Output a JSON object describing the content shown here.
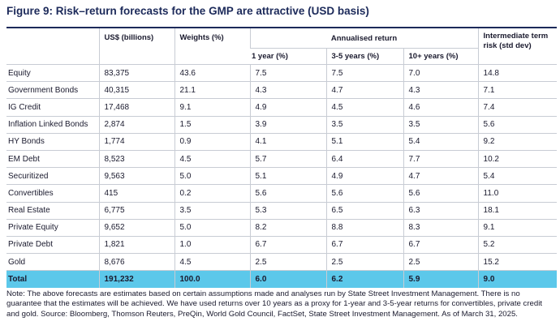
{
  "title": "Figure 9: Risk–return forecasts for the GMP are attractive (USD basis)",
  "table": {
    "columns": [
      "US$ (billions)",
      "Weights (%)",
      "Annualised return",
      "Intermediate term risk (std dev)"
    ],
    "subcolumns": [
      "1 year (%)",
      "3-5 years (%)",
      "10+ years (%)"
    ],
    "rows": [
      [
        "Equity",
        "83,375",
        "43.6",
        "7.5",
        "7.5",
        "7.0",
        "14.8"
      ],
      [
        "Government Bonds",
        "40,315",
        "21.1",
        "4.3",
        "4.7",
        "4.3",
        "7.1"
      ],
      [
        "IG Credit",
        "17,468",
        "9.1",
        "4.9",
        "4.5",
        "4.6",
        "7.4"
      ],
      [
        "Inflation Linked Bonds",
        "2,874",
        "1.5",
        "3.9",
        "3.5",
        "3.5",
        "5.6"
      ],
      [
        "HY Bonds",
        "1,774",
        "0.9",
        "4.1",
        "5.1",
        "5.4",
        "9.2"
      ],
      [
        "EM Debt",
        "8,523",
        "4.5",
        "5.7",
        "6.4",
        "7.7",
        "10.2"
      ],
      [
        "Securitized",
        "9,563",
        "5.0",
        "5.1",
        "4.9",
        "4.7",
        "5.4"
      ],
      [
        "Convertibles",
        "415",
        "0.2",
        "5.6",
        "5.6",
        "5.6",
        "11.0"
      ],
      [
        "Real Estate",
        "6,775",
        "3.5",
        "5.3",
        "6.5",
        "6.3",
        "18.1"
      ],
      [
        "Private Equity",
        "9,652",
        "5.0",
        "8.2",
        "8.8",
        "8.3",
        "9.1"
      ],
      [
        "Private Debt",
        "1,821",
        "1.0",
        "6.7",
        "6.7",
        "6.7",
        "5.2"
      ],
      [
        "Gold",
        "8,676",
        "4.5",
        "2.5",
        "2.5",
        "2.5",
        "15.2"
      ]
    ],
    "total": [
      "Total",
      "191,232",
      "100.0",
      "6.0",
      "6.2",
      "5.9",
      "9.0"
    ]
  },
  "note": "Note: The above forecasts are estimates based on certain assumptions made and analyses run by State Street Investment Management. There is no guarantee that the estimates will be achieved. We have used returns over 10 years as a proxy for 1-year and 3-5-year returns for convertibles, private credit and gold. Source: Bloomberg, Thomson Reuters, PreQin, World Gold Council, FactSet, State Street Investment Management. As of March 31, 2025."
}
